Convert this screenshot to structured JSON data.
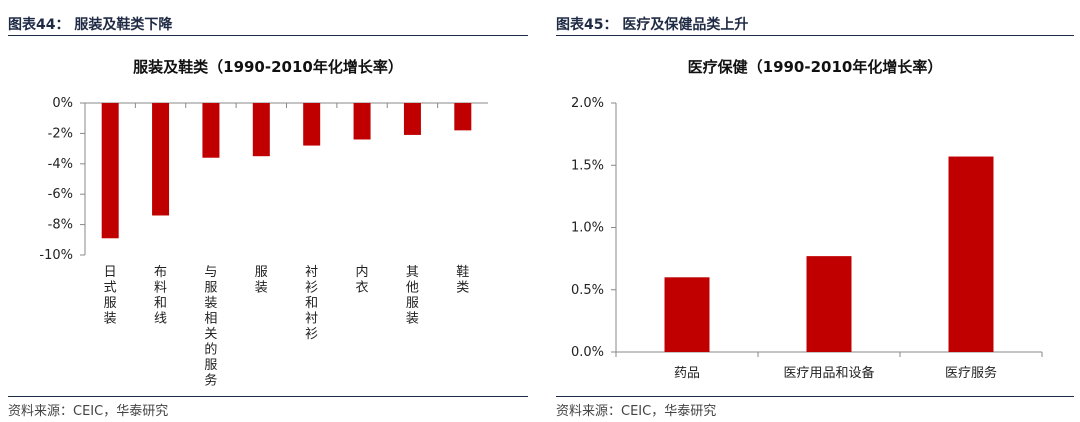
{
  "left": {
    "figure_label": "图表44：  服装及鞋类下降",
    "source": "资料来源：CEIC，华泰研究"
  },
  "right": {
    "figure_label": "图表45：  医疗及保健品类上升",
    "source": "资料来源：CEIC，华泰研究"
  },
  "chart_data": [
    {
      "type": "bar",
      "title": "服装及鞋类（1990-2010年化增长率）",
      "categories": [
        "日式服装",
        "布料和线",
        "与服装相关的服务",
        "服装",
        "衬衫和衬衫",
        "内衣",
        "其他服装",
        "鞋类"
      ],
      "values": [
        -8.9,
        -7.4,
        -3.6,
        -3.5,
        -2.8,
        -2.4,
        -2.1,
        -1.8
      ],
      "ylim": [
        -10,
        0
      ],
      "yticks": [
        "0%",
        "-2%",
        "-4%",
        "-6%",
        "-8%",
        "-10%"
      ],
      "ytick_values": [
        0,
        -2,
        -4,
        -6,
        -8,
        -10
      ],
      "xlabel": "",
      "ylabel": "",
      "bar_color": "#c00000",
      "grid": false
    },
    {
      "type": "bar",
      "title": "医疗保健（1990-2010年化增长率）",
      "categories": [
        "药品",
        "医疗用品和设备",
        "医疗服务"
      ],
      "values": [
        0.6,
        0.77,
        1.57
      ],
      "ylim": [
        0,
        2
      ],
      "yticks": [
        "2.0%",
        "1.5%",
        "1.0%",
        "0.5%",
        "0.0%"
      ],
      "ytick_values": [
        2,
        1.5,
        1,
        0.5,
        0
      ],
      "xlabel": "",
      "ylabel": "",
      "bar_color": "#c00000",
      "grid": false
    }
  ]
}
